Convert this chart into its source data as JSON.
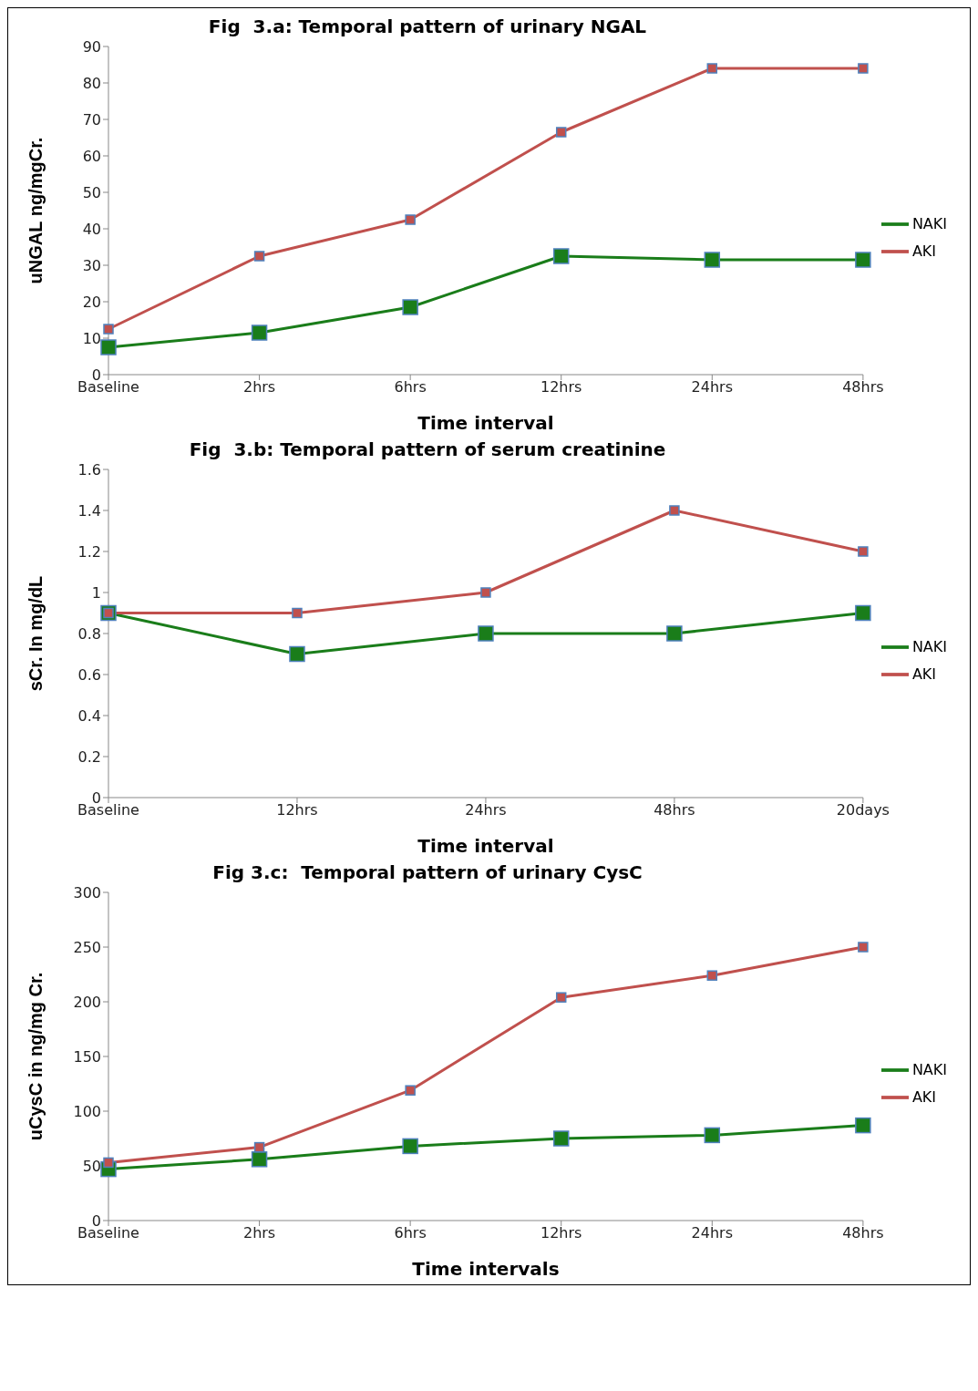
{
  "chart_data": [
    {
      "type": "line",
      "title": "Fig  3.a: Temporal pattern of urinary NGAL",
      "xlabel": "Time interval",
      "ylabel": "uNGAL ng/mgCr.",
      "categories": [
        "Baseline",
        "2hrs",
        "6hrs",
        "12hrs",
        "24hrs",
        "48hrs"
      ],
      "series": [
        {
          "name": "NAKI",
          "color": "#1a7d1a",
          "values": [
            7.5,
            11.5,
            18.5,
            32.5,
            31.5,
            31.5
          ]
        },
        {
          "name": "AKI",
          "color": "#c0504d",
          "values": [
            12.5,
            32.5,
            42.5,
            66.5,
            84,
            84
          ]
        }
      ],
      "ylim": [
        0,
        90
      ],
      "yticks": [
        0,
        10,
        20,
        30,
        40,
        50,
        60,
        70,
        80,
        90
      ],
      "grid": false,
      "legend": "right",
      "marker": "square",
      "line_style": "solid"
    },
    {
      "type": "line",
      "title": "Fig  3.b: Temporal pattern of serum creatinine",
      "xlabel": "Time interval",
      "ylabel": "sCr. In mg/dL",
      "categories": [
        "Baseline",
        "12hrs",
        "24hrs",
        "48hrs",
        "20days"
      ],
      "series": [
        {
          "name": "NAKI",
          "color": "#1a7d1a",
          "values": [
            0.9,
            0.7,
            0.8,
            0.8,
            0.9
          ]
        },
        {
          "name": "AKI",
          "color": "#c0504d",
          "values": [
            0.9,
            0.9,
            1.0,
            1.4,
            1.2
          ]
        }
      ],
      "ylim": [
        0,
        1.6
      ],
      "yticks": [
        0,
        0.2,
        0.4,
        0.6,
        0.8,
        1,
        1.2,
        1.4,
        1.6
      ],
      "grid": false,
      "legend": "right",
      "marker": "square",
      "line_style": "solid"
    },
    {
      "type": "line",
      "title": "Fig 3.c:  Temporal pattern of urinary CysC",
      "xlabel": "Time intervals",
      "ylabel": "uCysC in ng/mg Cr.",
      "categories": [
        "Baseline",
        "2hrs",
        "6hrs",
        "12hrs",
        "24hrs",
        "48hrs"
      ],
      "series": [
        {
          "name": "NAKI",
          "color": "#1a7d1a",
          "values": [
            47,
            56,
            68,
            75,
            78,
            87
          ]
        },
        {
          "name": "AKI",
          "color": "#c0504d",
          "values": [
            53,
            67,
            119,
            204,
            224,
            250
          ]
        }
      ],
      "ylim": [
        0,
        300
      ],
      "yticks": [
        0,
        50,
        100,
        150,
        200,
        250,
        300
      ],
      "grid": false,
      "legend": "right",
      "marker": "square",
      "line_style": "solid"
    }
  ]
}
